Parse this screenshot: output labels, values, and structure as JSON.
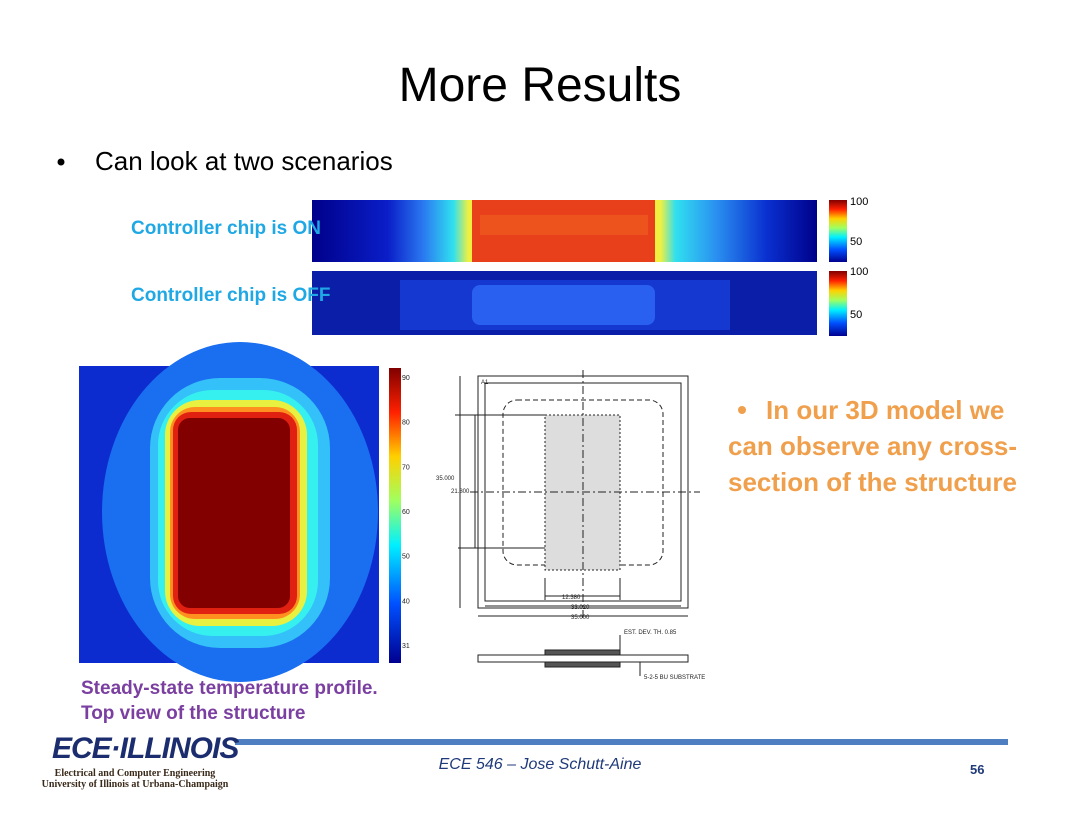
{
  "title": "More Results",
  "bullet": "Can look at two scenarios",
  "scenarios": [
    {
      "label": "Controller chip is ON",
      "colorbar_ticks": [
        "100",
        "50"
      ]
    },
    {
      "label": "Controller chip is OFF",
      "colorbar_ticks": [
        "100",
        "50"
      ]
    }
  ],
  "top_view": {
    "colorbar_ticks": [
      "90",
      "80",
      "70",
      "60",
      "50",
      "40",
      "31"
    ]
  },
  "drawing": {
    "labels": [
      "A1",
      "35.000",
      "21.800",
      "12.380",
      "33.020",
      "35.000",
      "EST. DEV. TH. 0.85",
      "5-2-5 BU SUBSTRATE"
    ]
  },
  "note": "In our 3D model we can observe any cross-section of the structure",
  "caption": [
    "Steady-state temperature profile.",
    "Top view of the structure"
  ],
  "footer": {
    "logo": "ECE·ILLINOIS",
    "department": "Electrical and Computer Engineering",
    "university": "University of Illinois at Urbana-Champaign",
    "course": "ECE 546 – Jose Schutt-Aine",
    "page": "56"
  }
}
